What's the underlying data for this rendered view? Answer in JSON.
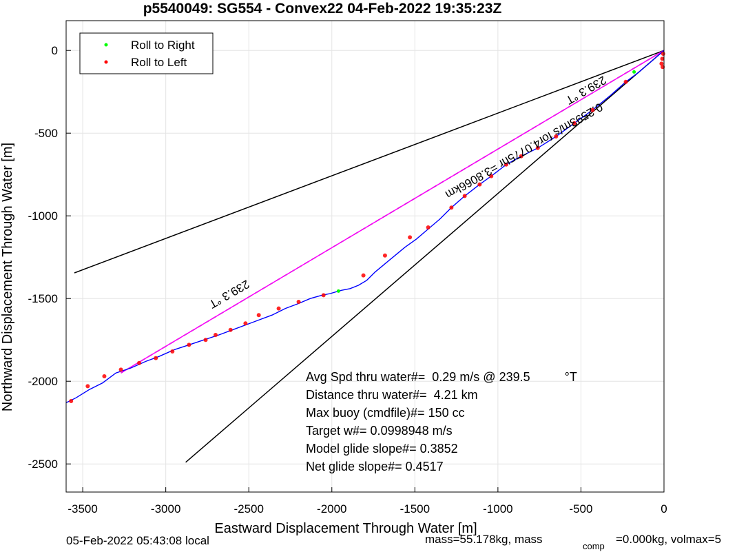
{
  "chart_data": {
    "type": "line",
    "title": "p5540049: SG554 - Convex22 04-Feb-2022 19:35:23Z",
    "xlabel": "Eastward Displacement Through Water [m]",
    "ylabel": "Northward Displacement Through Water [m]",
    "xlim": [
      -3600,
      0
    ],
    "ylim": [
      -2670,
      180
    ],
    "x_ticks": [
      -3500,
      -3000,
      -2500,
      -2000,
      -1500,
      -1000,
      -500,
      0
    ],
    "y_ticks": [
      0,
      -500,
      -1000,
      -1500,
      -2000,
      -2500
    ],
    "grid": true,
    "legend": {
      "placement": "top-left",
      "entries": [
        "Roll to Right",
        "Roll to Left"
      ]
    },
    "colors": {
      "track": "#0000ff",
      "roll_right": "#00ff00",
      "roll_left": "#ff0000",
      "heading_line": "#ff00ff",
      "envelope": "#000000"
    },
    "track": {
      "x": [
        0,
        -80,
        -150,
        -230,
        -320,
        -430,
        -540,
        -650,
        -760,
        -860,
        -950,
        -1040,
        -1110,
        -1200,
        -1280,
        -1350,
        -1420,
        -1490,
        -1560,
        -1620,
        -1680,
        -1740,
        -1790,
        -1840,
        -1890,
        -1940,
        -1960,
        -2010,
        -2060,
        -2130,
        -2200,
        -2280,
        -2360,
        -2440,
        -2520,
        -2600,
        -2680,
        -2770,
        -2860,
        -2950,
        -3040,
        -3120,
        -3210,
        -3300,
        -3380,
        -3460,
        -3540,
        -3600
      ],
      "y": [
        0,
        -70,
        -130,
        -190,
        -270,
        -360,
        -440,
        -520,
        -590,
        -640,
        -690,
        -760,
        -810,
        -880,
        -950,
        -1020,
        -1080,
        -1140,
        -1190,
        -1240,
        -1290,
        -1340,
        -1390,
        -1420,
        -1440,
        -1450,
        -1455,
        -1470,
        -1480,
        -1500,
        -1530,
        -1560,
        -1600,
        -1630,
        -1660,
        -1690,
        -1720,
        -1750,
        -1780,
        -1810,
        -1850,
        -1880,
        -1920,
        -1950,
        -2010,
        -2050,
        -2100,
        -2130
      ]
    },
    "roll_left_points": {
      "x": [
        -5,
        -10,
        -15,
        -8,
        -230,
        -430,
        -540,
        -650,
        -760,
        -860,
        -950,
        -1040,
        -1110,
        -1200,
        -1280,
        -1420,
        -1530,
        -1680,
        -1810,
        -2050,
        -2200,
        -2320,
        -2440,
        -2520,
        -2610,
        -2700,
        -2760,
        -2860,
        -2960,
        -3060,
        -3160,
        -3270,
        -3370,
        -3470,
        -3570
      ],
      "y": [
        -20,
        -50,
        -80,
        -100,
        -190,
        -360,
        -440,
        -520,
        -590,
        -640,
        -690,
        -760,
        -810,
        -880,
        -950,
        -1070,
        -1130,
        -1240,
        -1360,
        -1480,
        -1520,
        -1560,
        -1600,
        -1650,
        -1690,
        -1720,
        -1750,
        -1780,
        -1820,
        -1860,
        -1890,
        -1930,
        -1970,
        -2030,
        -2120
      ]
    },
    "roll_right_points": {
      "x": [
        -180,
        -1960
      ],
      "y": [
        -130,
        -1455
      ]
    },
    "envelope_lines": [
      {
        "x": [
          0,
          -3550
        ],
        "y": [
          0,
          -1345
        ]
      },
      {
        "x": [
          0,
          -2880
        ],
        "y": [
          0,
          -2490
        ]
      }
    ],
    "heading_line": {
      "x": [
        0,
        -3270
      ],
      "y": [
        0,
        -1950
      ]
    },
    "annotations": {
      "heading_lower": "239.3 °T",
      "heading_upper": "239.3 °T",
      "current": "0.2593m/s for4.0775hr =3.8066km"
    },
    "stats": [
      "Avg Spd thru water#=  0.29 m/s @ 239.5          °T",
      "Distance thru water#=  4.21 km",
      "Max buoy (cmdfile)#= 150 cc",
      "Target w#= 0.0998948 m/s",
      "Model glide slope#= 0.3852",
      "Net glide slope#= 0.4517"
    ]
  },
  "footer": {
    "local_time": "05-Feb-2022 05:43:08 local",
    "mass_text": "mass=55.178kg, mass",
    "comp_sub": "comp",
    "comp_text": "=0.000kg, volmax=5"
  }
}
